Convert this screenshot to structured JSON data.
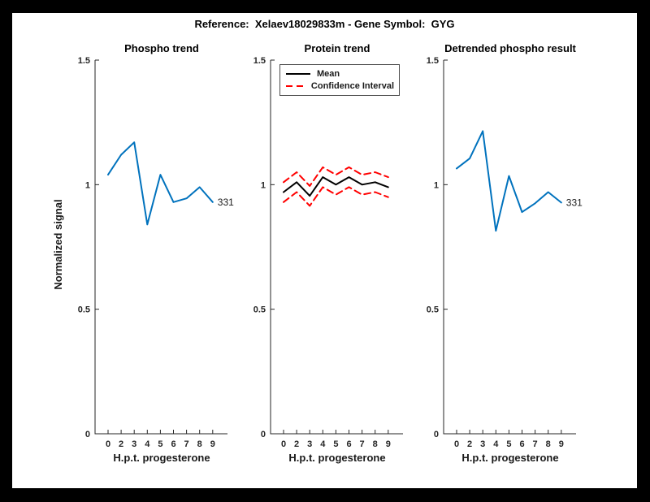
{
  "figure": {
    "title": "Reference:  Xelaev18029833m - Gene Symbol:  GYG",
    "background_color": "#000000",
    "canvas_color": "#ffffff"
  },
  "colors": {
    "blue_line": "#0072BD",
    "mean_line": "#000000",
    "ci_line": "#FF0000",
    "axis": "#262626"
  },
  "chart_data": [
    {
      "type": "line",
      "title": "Phospho trend",
      "xlabel": "H.p.t. progesterone",
      "ylabel": "Normalized signal",
      "ylim": [
        0,
        1.5
      ],
      "yticks": [
        0,
        0.5,
        1,
        1.5
      ],
      "ytick_labels": [
        "0",
        "0.5",
        "1",
        "1.5"
      ],
      "x_ticklabels": [
        "0",
        "2",
        "3",
        "4",
        "5",
        "6",
        "7",
        "8",
        "9"
      ],
      "grid": false,
      "series": [
        {
          "name": "331",
          "color": "#0072BD",
          "style": "solid",
          "values": [
            1.04,
            1.12,
            1.17,
            0.84,
            1.04,
            0.93,
            0.945,
            0.99,
            0.93
          ],
          "end_label": "331"
        }
      ]
    },
    {
      "type": "line",
      "title": "Protein trend",
      "xlabel": "H.p.t. progesterone",
      "ylabel": "",
      "ylim": [
        0,
        1.5
      ],
      "yticks": [
        0,
        0.5,
        1,
        1.5
      ],
      "ytick_labels": [
        "0",
        "0.5",
        "1",
        "1.5"
      ],
      "x_ticklabels": [
        "0",
        "2",
        "3",
        "4",
        "5",
        "6",
        "7",
        "8",
        "9"
      ],
      "grid": false,
      "legend": {
        "position": "top-left",
        "items": [
          {
            "label": "Mean",
            "color": "#000000",
            "style": "solid"
          },
          {
            "label": "Confidence Interval",
            "color": "#FF0000",
            "style": "dashed"
          }
        ]
      },
      "series": [
        {
          "name": "Mean",
          "color": "#000000",
          "style": "solid",
          "values": [
            0.97,
            1.01,
            0.955,
            1.03,
            1.0,
            1.03,
            1.0,
            1.01,
            0.99
          ]
        },
        {
          "name": "Confidence Interval upper",
          "color": "#FF0000",
          "style": "dashed",
          "values": [
            1.01,
            1.05,
            0.995,
            1.07,
            1.04,
            1.07,
            1.04,
            1.05,
            1.03
          ]
        },
        {
          "name": "Confidence Interval lower",
          "color": "#FF0000",
          "style": "dashed",
          "values": [
            0.93,
            0.97,
            0.915,
            0.99,
            0.96,
            0.99,
            0.96,
            0.97,
            0.95
          ]
        }
      ]
    },
    {
      "type": "line",
      "title": "Detrended phospho result",
      "xlabel": "H.p.t. progesterone",
      "ylabel": "",
      "ylim": [
        0,
        1.5
      ],
      "yticks": [
        0,
        0.5,
        1,
        1.5
      ],
      "ytick_labels": [
        "0",
        "0.5",
        "1",
        "1.5"
      ],
      "x_ticklabels": [
        "0",
        "2",
        "3",
        "4",
        "5",
        "6",
        "7",
        "8",
        "9"
      ],
      "grid": false,
      "series": [
        {
          "name": "331",
          "color": "#0072BD",
          "style": "solid",
          "values": [
            1.065,
            1.105,
            1.215,
            0.815,
            1.035,
            0.89,
            0.925,
            0.97,
            0.928
          ],
          "end_label": "331"
        }
      ]
    }
  ]
}
